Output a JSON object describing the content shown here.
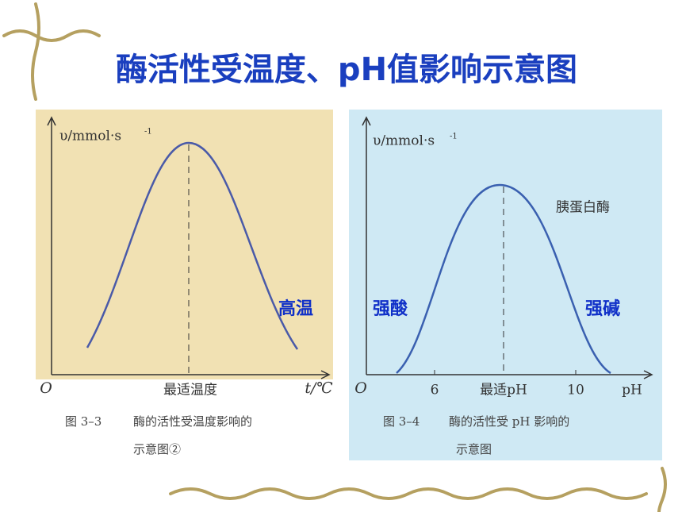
{
  "title": "酶活性受温度、pH值影响示意图",
  "figures": [
    {
      "y_axis_label": "υ/mmol·s",
      "y_axis_label_sup": "-1",
      "origin": "O",
      "x_ticks": [
        "最适温度"
      ],
      "x_axis_label": "t/℃",
      "annotations": [
        "高温"
      ],
      "caption": [
        "图 3–3",
        "酶的活性受温度影响的",
        "示意图②"
      ]
    },
    {
      "y_axis_label": "υ/mmol·s",
      "y_axis_label_sup": "-1",
      "origin": "O",
      "x_ticks": [
        6,
        "最适pH",
        10
      ],
      "x_axis_label": "pH",
      "curve_label": "胰蛋白酶",
      "annotations": [
        "强酸",
        "强碱"
      ],
      "caption": [
        "图 3–4",
        "酶的活性受 pH 影响的",
        "示意图"
      ]
    }
  ]
}
